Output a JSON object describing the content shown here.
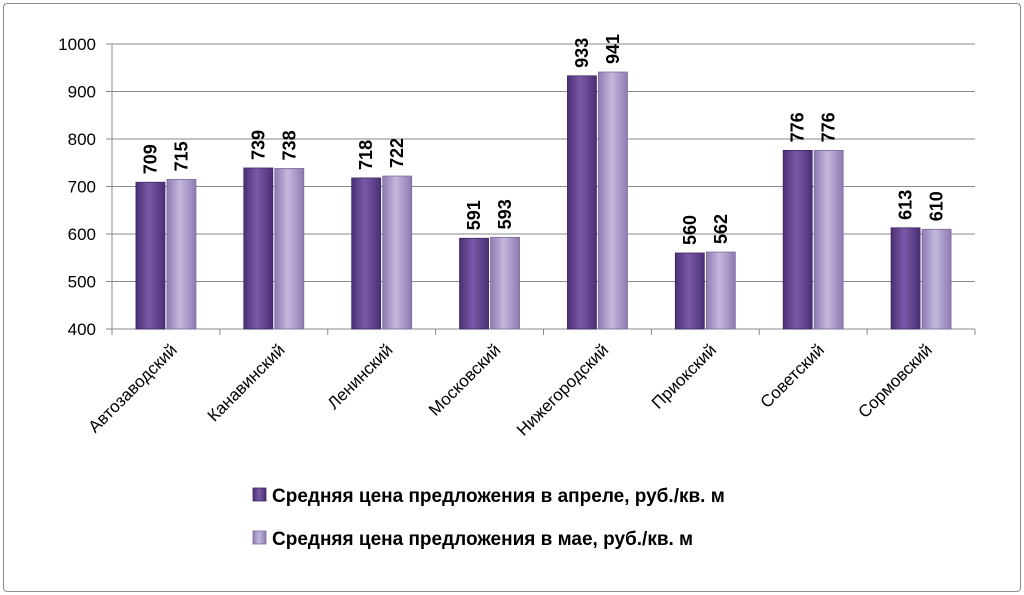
{
  "chart_data": {
    "type": "bar",
    "categories": [
      "Автозаводский",
      "Канавинский",
      "Ленинский",
      "Московский",
      "Нижегородский",
      "Приокский",
      "Советский",
      "Сормовский"
    ],
    "series": [
      {
        "name": "Средняя цена предложения в апреле, руб./кв. м",
        "values": [
          709,
          739,
          718,
          591,
          933,
          560,
          776,
          613
        ],
        "color": "#6a4c93"
      },
      {
        "name": "Средняя цена предложения в мае, руб./кв. м",
        "values": [
          715,
          738,
          722,
          593,
          941,
          562,
          776,
          610
        ],
        "color": "#a596c4"
      }
    ],
    "ylim": [
      400,
      1000
    ],
    "yticks": [
      400,
      500,
      600,
      700,
      800,
      900,
      1000
    ],
    "grid": true,
    "legend_position": "bottom"
  }
}
